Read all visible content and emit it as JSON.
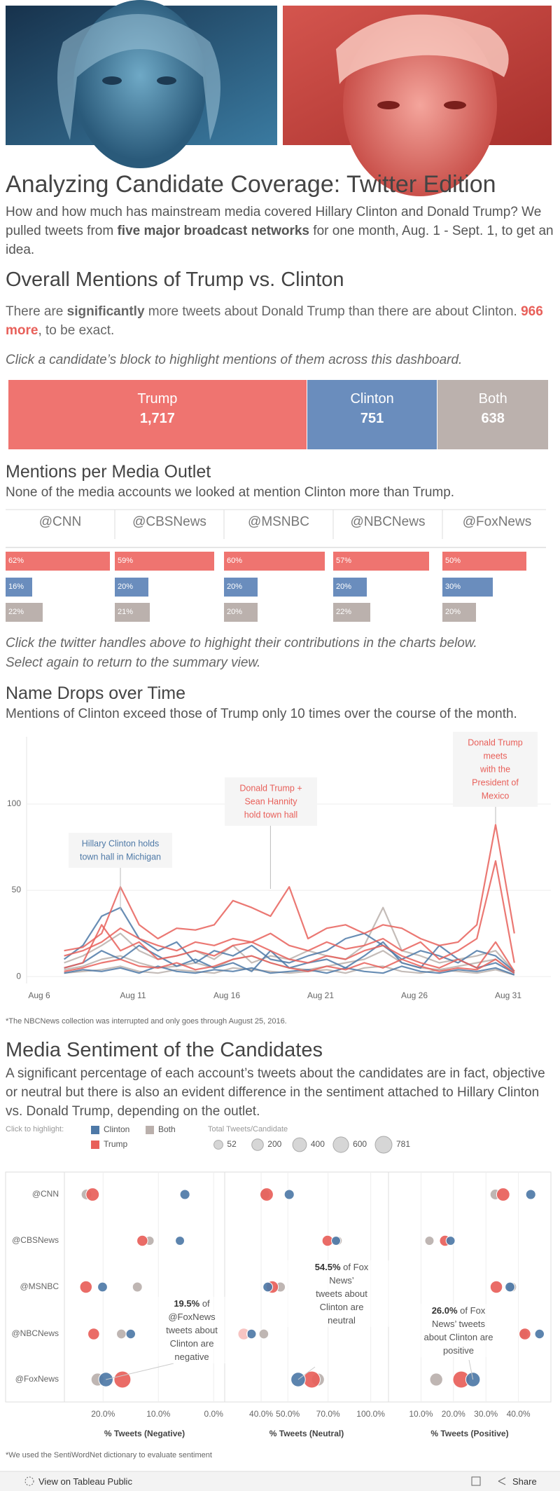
{
  "header": {
    "title": "Analyzing Candidate Coverage: Twitter Edition",
    "intro": [
      {
        "text": "How and how much has mainstream media covered Hillary Clinton and Donald Trump? We pulled tweets from "
      },
      {
        "text": "five major broadcast networks",
        "bold": true
      },
      {
        "text": " for one month, Aug. 1 - Sept. 1, to get an idea."
      }
    ]
  },
  "overall": {
    "title": "Overall Mentions of Trump vs. Clinton",
    "description": [
      {
        "text": "There are "
      },
      {
        "text": "significantly",
        "bold": true
      },
      {
        "text": " more tweets about Donald Trump than there are about Clinton. "
      },
      {
        "text": "966 more",
        "bold": true,
        "color": "#e8605a"
      },
      {
        "text": ", to be exact."
      }
    ],
    "instruction": "Click a candidate’s  block to highlight mentions of them across this dashboard.",
    "blocks": [
      {
        "name": "Trump",
        "value": 1717,
        "value_label": "1,717",
        "color": "#ef7470"
      },
      {
        "name": "Clinton",
        "value": 751,
        "value_label": "751",
        "color": "#6a8dbd"
      },
      {
        "name": "Both",
        "value": 638,
        "value_label": "638",
        "color": "#bbb1ad"
      }
    ]
  },
  "outlets": {
    "title": "Mentions per Media Outlet",
    "subtitle": "None of the media accounts we looked at mention Clinton more than Trump.",
    "handles": [
      "@CNN",
      "@CBSNews",
      "@MSNBC",
      "@NBCNews",
      "@FoxNews"
    ],
    "series": [
      {
        "color": "#ef7470",
        "values": [
          62,
          59,
          60,
          57,
          50
        ],
        "value_labels": [
          "62%",
          "59%",
          "60%",
          "57%",
          "50%"
        ]
      },
      {
        "color": "#6a8dbd",
        "values": [
          16,
          20,
          20,
          20,
          30
        ],
        "value_labels": [
          "16%",
          "20%",
          "20%",
          "20%",
          "30%"
        ]
      },
      {
        "color": "#bbb1ad",
        "values": [
          22,
          21,
          20,
          22,
          20
        ],
        "value_labels": [
          "22%",
          "21%",
          "20%",
          "22%",
          "20%"
        ]
      }
    ],
    "instruction": [
      "Click the twitter handles above to highight their contributions in the charts below.",
      "Select again to return to the summary view."
    ]
  },
  "timeline": {
    "type": "line",
    "title": "Name Drops over Time",
    "subtitle": "Mentions of Clinton exceed those of Trump only 10 times over the course of the month.",
    "categories": [
      "Aug 6",
      null,
      null,
      null,
      null,
      "Aug 11",
      null,
      null,
      null,
      null,
      "Aug 16",
      null,
      null,
      null,
      null,
      "Aug 21",
      null,
      null,
      null,
      null,
      "Aug 26",
      null,
      null,
      null,
      null,
      "Aug 31",
      null
    ],
    "ylim": [
      -4,
      139
    ],
    "yticks": [
      0,
      50,
      100
    ],
    "grid": true,
    "series": [
      {
        "color": "#bab0ac",
        "values": [
          null,
          null,
          8,
          12,
          18,
          25,
          15,
          10,
          12,
          15,
          10,
          18,
          8,
          12,
          10,
          15,
          12,
          10,
          18,
          40,
          15,
          12,
          8,
          10,
          12,
          15,
          3
        ]
      },
      {
        "color": "#bab0ac",
        "values": [
          null,
          null,
          4,
          6,
          10,
          12,
          8,
          5,
          6,
          8,
          5,
          10,
          12,
          8,
          5,
          4,
          6,
          8,
          10,
          15,
          8,
          5,
          4,
          6,
          8,
          10,
          2
        ]
      },
      {
        "color": "#bab0ac",
        "values": [
          null,
          null,
          2,
          3,
          4,
          6,
          3,
          2,
          4,
          3,
          2,
          5,
          4,
          3,
          2,
          3,
          4,
          2,
          5,
          6,
          3,
          2,
          4,
          3,
          2,
          4,
          1
        ]
      },
      {
        "color": "#4e79a7",
        "values": [
          null,
          null,
          10,
          18,
          35,
          40,
          22,
          15,
          20,
          8,
          15,
          12,
          18,
          10,
          8,
          12,
          15,
          22,
          25,
          18,
          10,
          15,
          12,
          8,
          15,
          12,
          3
        ]
      },
      {
        "color": "#4e79a7",
        "values": [
          null,
          null,
          5,
          8,
          15,
          10,
          18,
          12,
          6,
          10,
          5,
          8,
          3,
          15,
          5,
          8,
          10,
          5,
          12,
          20,
          8,
          5,
          18,
          10,
          5,
          8,
          2
        ]
      },
      {
        "color": "#4e79a7",
        "values": [
          null,
          null,
          2,
          4,
          3,
          5,
          2,
          6,
          3,
          2,
          4,
          3,
          5,
          2,
          3,
          4,
          2,
          5,
          3,
          2,
          6,
          3,
          2,
          4,
          3,
          5,
          1
        ]
      },
      {
        "color": "#e8605a",
        "values": [
          null,
          null,
          15,
          17,
          25,
          52,
          30,
          22,
          28,
          27,
          30,
          44,
          40,
          35,
          52,
          22,
          28,
          30,
          25,
          30,
          28,
          22,
          18,
          20,
          30,
          88,
          25
        ]
      },
      {
        "color": "#e8605a",
        "values": [
          null,
          null,
          12,
          15,
          20,
          28,
          22,
          18,
          15,
          20,
          18,
          22,
          20,
          25,
          18,
          15,
          20,
          16,
          18,
          22,
          15,
          20,
          10,
          15,
          22,
          67,
          8
        ]
      },
      {
        "color": "#e8605a",
        "values": [
          null,
          null,
          5,
          8,
          30,
          15,
          20,
          10,
          12,
          15,
          12,
          18,
          20,
          15,
          10,
          8,
          12,
          10,
          15,
          18,
          12,
          8,
          5,
          10,
          5,
          20,
          3
        ]
      },
      {
        "color": "#e8605a",
        "values": [
          null,
          null,
          3,
          5,
          8,
          10,
          6,
          5,
          8,
          4,
          6,
          10,
          12,
          8,
          5,
          3,
          6,
          4,
          8,
          5,
          10,
          6,
          3,
          5,
          4,
          10,
          2
        ]
      }
    ],
    "annotations": [
      {
        "lines": [
          "Hillary Clinton holds",
          "town hall in Michigan"
        ],
        "color": "#4e79a7"
      },
      {
        "lines": [
          "Donald Trump +",
          "Sean Hannity",
          "hold town hall"
        ],
        "color": "#e8605a"
      },
      {
        "lines": [
          "Donald Trump",
          "meets",
          "with the",
          "President of",
          "Mexico"
        ],
        "color": "#e8605a"
      }
    ],
    "footnote": "*The NBCNews collection was interrupted and only goes through August 25, 2016."
  },
  "sentiment": {
    "type": "scatter",
    "title": "Media Sentiment of the Candidates",
    "description": " A significant percentage of each account’s tweets about the candidates are in fact, objective or neutral but there is also an evident difference in the sentiment attached to Hillary Clinton vs. Donald Trump, depending on the outlet.",
    "highlight_label": "Click to highlight:",
    "size_legend_title": "Total Tweets/Candidate",
    "size_legend": [
      52,
      200,
      400,
      600,
      781
    ],
    "outlets": [
      "@CNN",
      "@CBSNews",
      "@MSNBC",
      "@NBCNews",
      "@FoxNews"
    ],
    "series": [
      {
        "name": "Clinton",
        "color": "#4e79a7",
        "sizes": [
          90,
          52,
          80,
          70,
          459
        ]
      },
      {
        "name": "Trump",
        "color": "#e8605a",
        "sizes": [
          336,
          150,
          250,
          200,
          781
        ]
      },
      {
        "name": "Both",
        "color": "#bab0ac",
        "sizes": [
          120,
          55,
          85,
          75,
          303
        ]
      }
    ],
    "panels": [
      {
        "axis_title": "% Tweets (Negative)",
        "xlim": [
          27,
          -2
        ],
        "xticks": [
          {
            "value": 20,
            "label": "20.0%"
          },
          {
            "value": 10,
            "label": "10.0%"
          },
          {
            "value": 0,
            "label": "0.0%"
          }
        ],
        "values": [
          [
            5.2,
            6.1,
            20.1,
            15,
            19.5
          ],
          [
            21.9,
            12.9,
            23.1,
            21.7,
            16.5
          ],
          [
            23,
            11.6,
            13.8,
            16.7,
            21
          ]
        ]
      },
      {
        "axis_title": "% Tweets (Neutral)",
        "xlim": [
          29.5,
          116
        ],
        "log": true,
        "xticks": [
          {
            "value": 40,
            "label": "40.0%"
          },
          {
            "value": 50,
            "label": "50.0%"
          },
          {
            "value": 70,
            "label": "70.0%"
          },
          {
            "value": 100,
            "label": "100.0%"
          }
        ],
        "values": [
          [
            50.6,
            74.8,
            42.3,
            36.9,
            54.5
          ],
          [
            41.9,
            69.7,
            43.9,
            34.6,
            61.1
          ],
          [
            41.2,
            75.8,
            47,
            40.9,
            64.3
          ]
        ]
      },
      {
        "axis_title": "% Tweets (Positive)",
        "xlim": [
          0,
          50
        ],
        "xticks": [
          {
            "value": 10,
            "label": "10.0%"
          },
          {
            "value": 20,
            "label": "20.0%"
          },
          {
            "value": 30,
            "label": "30.0%"
          },
          {
            "value": 40,
            "label": "40.0%"
          }
        ],
        "values": [
          [
            43.8,
            19.1,
            37.4,
            46.5,
            26
          ],
          [
            35.3,
            17.4,
            33.2,
            42,
            22.4
          ],
          [
            32.9,
            12.6,
            37.9,
            41.5,
            14.7
          ]
        ]
      }
    ],
    "annotations": [
      {
        "bold": "19.5%",
        "lines": [
          " of",
          "@FoxNews",
          "tweets about",
          "Clinton are",
          "negative"
        ]
      },
      {
        "bold": "54.5%",
        "lines": [
          " of Fox",
          "News’",
          "tweets about",
          "Clinton are",
          "neutral"
        ]
      },
      {
        "bold": "26.0%",
        "lines": [
          " of Fox",
          "News’ tweets",
          "about Clinton are",
          "positive"
        ]
      }
    ]
  },
  "footer": {
    "note": "*We used the SentiWordNet dictionary to evaluate sentiment",
    "toolbar": {
      "link": "View on Tableau Public",
      "share": "Share"
    }
  }
}
